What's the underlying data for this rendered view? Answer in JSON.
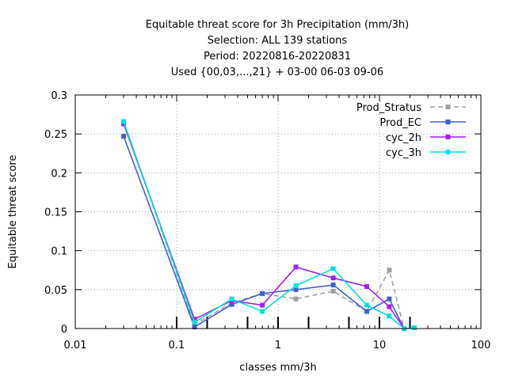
{
  "chart_data": {
    "type": "line",
    "title_lines": [
      "Equitable threat score  for 3h Precipitation (mm/3h)",
      "Selection: ALL    139 stations",
      "Period: 20220816-20220831",
      "Used {00,03,...,21} + 03-00 06-03 09-06"
    ],
    "xlabel": "classes mm/3h",
    "ylabel": "Equitable threat score",
    "x_scale": "log",
    "xlim": [
      0.01,
      100
    ],
    "ylim": [
      0,
      0.3
    ],
    "x_ticks": [
      0.01,
      0.1,
      1,
      10,
      100
    ],
    "x_tick_labels": [
      "0.01",
      "0.1",
      "1",
      "10",
      "100"
    ],
    "y_ticks": [
      0,
      0.05,
      0.1,
      0.15,
      0.2,
      0.25,
      0.3
    ],
    "y_tick_labels": [
      "0",
      "0.05",
      "0.1",
      "0.15",
      "0.2",
      "0.25",
      "0.3"
    ],
    "grid": true,
    "legend_position": "top-right",
    "class_markers": [
      0.1,
      0.2,
      0.5,
      1,
      2,
      5,
      10,
      20
    ],
    "series": [
      {
        "name": "Prod_Stratus",
        "color": "#a0a0a0",
        "dashed": true,
        "points": [
          [
            0.03,
            0.265
          ],
          [
            0.15,
            0.005
          ],
          [
            0.35,
            0.033
          ],
          [
            0.7,
            0.045
          ],
          [
            1.5,
            0.038
          ],
          [
            3.5,
            0.048
          ],
          [
            7.5,
            0.022
          ],
          [
            12.5,
            0.075
          ],
          [
            17.5,
            0.0
          ],
          [
            22,
            0.001
          ]
        ]
      },
      {
        "name": "Prod_EC",
        "color": "#4060c8",
        "dashed": false,
        "points": [
          [
            0.03,
            0.247
          ],
          [
            0.15,
            0.002
          ],
          [
            0.35,
            0.031
          ],
          [
            0.7,
            0.045
          ],
          [
            1.5,
            0.05
          ],
          [
            3.5,
            0.056
          ],
          [
            7.5,
            0.022
          ],
          [
            12.5,
            0.038
          ],
          [
            17.5,
            0.0
          ]
        ]
      },
      {
        "name": "cyc_2h",
        "color": "#a020f0",
        "dashed": false,
        "points": [
          [
            0.03,
            0.263
          ],
          [
            0.15,
            0.012
          ],
          [
            0.35,
            0.036
          ],
          [
            0.7,
            0.03
          ],
          [
            1.5,
            0.079
          ],
          [
            3.5,
            0.065
          ],
          [
            7.5,
            0.054
          ],
          [
            12.5,
            0.028
          ],
          [
            17.5,
            0.0
          ]
        ]
      },
      {
        "name": "cyc_3h",
        "color": "#00e0e0",
        "dashed": false,
        "points": [
          [
            0.03,
            0.266
          ],
          [
            0.15,
            0.008
          ],
          [
            0.35,
            0.038
          ],
          [
            0.7,
            0.022
          ],
          [
            1.5,
            0.055
          ],
          [
            3.5,
            0.077
          ],
          [
            7.5,
            0.03
          ],
          [
            12.5,
            0.016
          ],
          [
            17.5,
            0.0
          ],
          [
            22,
            0.001
          ]
        ]
      }
    ]
  }
}
